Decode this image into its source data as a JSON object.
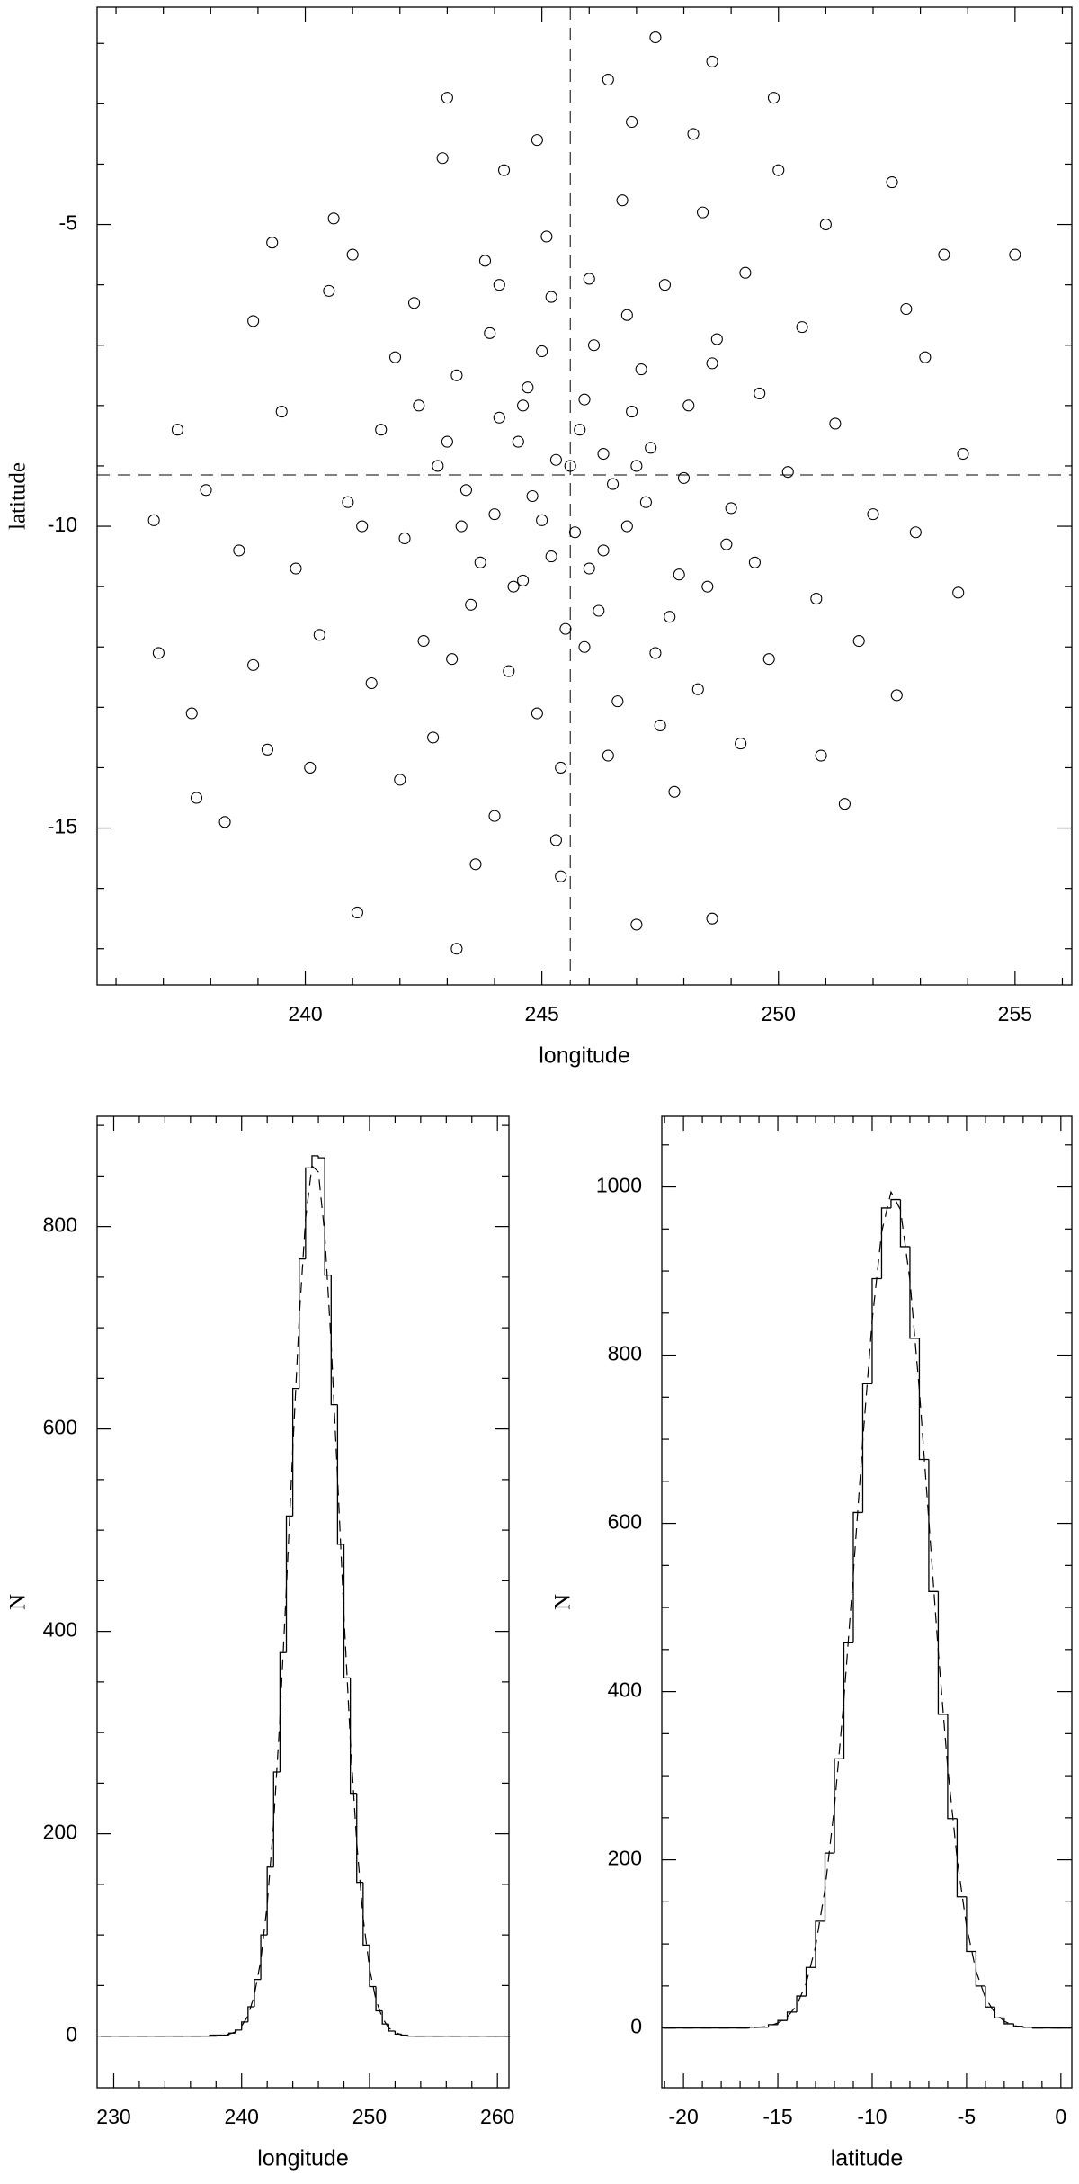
{
  "chart_data": [
    {
      "type": "scatter",
      "xlabel": "longitude",
      "ylabel": "latitude",
      "color": "#000000",
      "xlim": [
        235.6,
        256.2
      ],
      "ylim": [
        -17.6,
        -1.4
      ],
      "xticks": [
        240,
        245,
        250,
        255
      ],
      "yticks": [
        -15,
        -10,
        -5
      ],
      "xminorticks": [
        236,
        237,
        238,
        239,
        241,
        242,
        243,
        244,
        246,
        247,
        248,
        249,
        251,
        252,
        253,
        254,
        256
      ],
      "yminorticks": [
        -17,
        -16,
        -14,
        -13,
        -12,
        -11,
        -9,
        -8,
        -7,
        -6,
        -4,
        -3,
        -2
      ],
      "ref_x": 245.6,
      "ref_y": -9.15,
      "x": [
        236.8,
        236.9,
        237.3,
        237.6,
        237.7,
        238.3,
        241.1,
        243.2,
        247.4,
        248.6,
        249.9,
        255,
        253.9,
        253.8,
        253.5,
        251.4,
        250.9,
        247,
        248.6,
        245.4,
        239.3,
        238.6,
        243,
        246.4,
        252.4,
        252.7,
        238.9,
        240.6,
        244.1,
        246.3,
        245,
        247.2,
        243.5,
        248.1,
        245.9,
        242.8,
        246.8,
        244.6,
        249,
        243.9,
        245.3,
        247.7,
        242.1,
        246,
        244.9,
        248.7,
        241.6,
        246.5,
        245.7,
        243.2,
        247.9,
        244.3,
        249.6,
        242.5,
        246.9,
        245.1,
        248.3,
        240.9,
        245.6,
        244,
        247.1,
        243.7,
        246.2,
        250.2,
        242.3,
        245.4,
        248.9,
        241.4,
        246.7,
        244.7,
        247.5,
        243,
        249.3,
        245.8,
        244.4,
        246.1,
        242.7,
        248,
        250.8,
        239.8,
        245.2,
        247.3,
        243.4,
        246.6,
        244.2,
        249.8,
        241.9,
        245.5,
        251.2,
        240.3,
        246.4,
        243.8,
        248.4,
        242,
        247.6,
        244.8,
        250.5,
        239.5,
        246,
        245,
        244.5,
        247,
        243.1,
        248.6,
        241.2,
        249.5,
        244.9,
        252,
        238.9,
        251.7,
        240.5,
        250,
        245.3,
        247.8,
        242.9,
        253.1,
        239.2,
        246.9,
        244,
        249.2,
        241,
        252.5,
        237.9,
        251,
        243.6,
        248.2,
        240.1,
        252.9,
        245.9,
        246.3,
        244.6,
        245.2,
        246.8,
        243.3,
        247.4,
        244.1,
        248.5,
        242.4
      ],
      "y": [
        -9.9,
        -12.1,
        -8.4,
        -13.1,
        -14.5,
        -14.9,
        -16.4,
        -17,
        -1.9,
        -2.3,
        -2.9,
        -5.5,
        -8.8,
        -11.1,
        -5.5,
        -14.6,
        -13.8,
        -16.6,
        -16.5,
        -15.8,
        -5.3,
        -10.4,
        -2.9,
        -2.6,
        -4.3,
        -6.4,
        -6.6,
        -4.9,
        -8.2,
        -10.4,
        -7.1,
        -9.6,
        -11.3,
        -8,
        -12,
        -9,
        -6.5,
        -10.9,
        -9.7,
        -6.8,
        -8.9,
        -11.5,
        -10.2,
        -5.9,
        -13.1,
        -6.9,
        -8.4,
        -9.3,
        -10.1,
        -7.5,
        -10.8,
        -12.4,
        -7.8,
        -11.9,
        -8.1,
        -5.2,
        -12.7,
        -9.6,
        -9,
        -9.8,
        -7.4,
        -10.6,
        -11.4,
        -9.1,
        -6.3,
        -14,
        -10.3,
        -12.6,
        -4.6,
        -7.7,
        -13.3,
        -8.6,
        -5.8,
        -8.4,
        -11,
        -7,
        -13.5,
        -9.2,
        -11.2,
        -10.7,
        -6.2,
        -8.7,
        -9.4,
        -12.9,
        -4.1,
        -12.2,
        -7.2,
        -11.7,
        -8.3,
        -11.8,
        -13.8,
        -5.6,
        -4.8,
        -14.2,
        -6,
        -9.5,
        -6.7,
        -8.1,
        -10.7,
        -9.9,
        -8.6,
        -9,
        -12.2,
        -7.3,
        -10,
        -10.6,
        -3.6,
        -9.8,
        -12.3,
        -11.9,
        -6.1,
        -4.1,
        -15.2,
        -14.4,
        -3.9,
        -7.2,
        -13.7,
        -3.3,
        -14.8,
        -13.6,
        -5.5,
        -12.8,
        -9.4,
        -5,
        -15.6,
        -3.5,
        -14,
        -10.1,
        -7.9,
        -8.8,
        -8,
        -10.5,
        -10,
        -10,
        -12.1,
        -6,
        -11,
        -8
      ]
    },
    {
      "type": "histogram",
      "xlabel": "longitude",
      "ylabel": "N",
      "color": "#000000",
      "xlim": [
        228.7,
        260.9
      ],
      "ylim": [
        -51,
        909
      ],
      "xticks": [
        230,
        240,
        250,
        260
      ],
      "yticks": [
        0,
        200,
        400,
        600,
        800
      ],
      "xminorticks": [
        232,
        234,
        236,
        238,
        242,
        244,
        246,
        248,
        252,
        254,
        256,
        258
      ],
      "yminorticks": [
        50,
        100,
        150,
        250,
        300,
        350,
        450,
        500,
        550,
        650,
        700,
        750,
        850,
        900
      ],
      "bins": [
        229,
        234,
        234.5,
        235,
        235.5,
        236,
        236.5,
        237,
        237.5,
        238,
        238.5,
        239,
        239.5,
        240,
        240.5,
        241,
        241.5,
        242,
        242.5,
        243,
        243.5,
        244,
        244.5,
        245,
        245.5,
        246,
        246.5,
        247,
        247.5,
        248,
        248.5,
        249,
        249.5,
        250,
        250.5,
        251,
        251.5,
        252,
        252.5,
        253,
        253.5,
        254,
        254.5,
        255,
        255.5,
        256,
        256.5,
        257,
        261
      ],
      "counts": [
        0,
        0,
        0,
        0,
        0,
        0,
        0,
        0,
        1,
        1,
        1,
        3,
        6,
        14,
        29,
        56,
        100,
        167,
        261,
        379,
        514,
        640,
        768,
        858,
        870,
        868,
        752,
        624,
        486,
        354,
        240,
        152,
        90,
        49,
        25,
        12,
        5,
        2,
        1,
        0,
        0,
        0,
        0,
        0,
        0,
        0,
        0,
        0
      ],
      "fit": {
        "x": [
          229,
          238,
          238.5,
          239,
          239.5,
          240,
          240.5,
          241,
          241.5,
          242,
          242.5,
          243,
          243.5,
          244,
          244.5,
          245,
          245.5,
          246,
          246.5,
          247,
          247.5,
          248,
          248.5,
          249,
          249.5,
          250,
          250.5,
          251,
          251.5,
          252,
          252.5,
          253,
          261
        ],
        "values": [
          0,
          0,
          1,
          2,
          4,
          10,
          20,
          41,
          75,
          130,
          210,
          315,
          443,
          580,
          709,
          808,
          860,
          854,
          792,
          684,
          552,
          416,
          292,
          191,
          117,
          67,
          36,
          18,
          8,
          4,
          1,
          0,
          0
        ]
      }
    },
    {
      "type": "histogram",
      "xlabel": "latitude",
      "ylabel": "N",
      "color": "#000000",
      "xlim": [
        -21.15,
        0.58
      ],
      "ylim": [
        -71,
        1084
      ],
      "xticks": [
        -20,
        -15,
        -10,
        -5,
        0
      ],
      "yticks": [
        0,
        200,
        400,
        600,
        800,
        1000
      ],
      "xminorticks": [
        -21,
        -19,
        -18,
        -17,
        -16,
        -14,
        -13,
        -12,
        -11,
        -9,
        -8,
        -7,
        -6,
        -4,
        -3,
        -2,
        -1
      ],
      "yminorticks": [
        50,
        100,
        150,
        250,
        300,
        350,
        450,
        500,
        550,
        650,
        700,
        750,
        850,
        900,
        950,
        1050
      ],
      "bins": [
        -21,
        -17,
        -16.5,
        -16,
        -15.5,
        -15,
        -14.5,
        -14,
        -13.5,
        -13,
        -12.5,
        -12,
        -11.5,
        -11,
        -10.5,
        -10,
        -9.5,
        -9,
        -8.5,
        -8,
        -7.5,
        -7,
        -6.5,
        -6,
        -5.5,
        -5,
        -4.5,
        -4,
        -3.5,
        -3,
        -2.5,
        -2,
        -1.5,
        -1,
        0.5
      ],
      "counts": [
        0,
        0,
        1,
        1,
        4,
        9,
        19,
        38,
        72,
        127,
        208,
        320,
        458,
        613,
        766,
        891,
        975,
        985,
        929,
        820,
        676,
        519,
        373,
        249,
        156,
        91,
        50,
        25,
        12,
        5,
        2,
        1,
        0,
        0
      ],
      "fit": {
        "x": [
          -21,
          -16.5,
          -16,
          -15.5,
          -15,
          -14.5,
          -14,
          -13.5,
          -13,
          -12.5,
          -12,
          -11.5,
          -11,
          -10.5,
          -10,
          -9.5,
          -9,
          -8.5,
          -8,
          -7.5,
          -7,
          -6.5,
          -6,
          -5.5,
          -5,
          -4.5,
          -4,
          -3.5,
          -3,
          -2.5,
          -2,
          -1.5,
          0.5
        ],
        "values": [
          0,
          0,
          1,
          2,
          6,
          13,
          27,
          53,
          97,
          165,
          263,
          390,
          540,
          698,
          841,
          946,
          994,
          973,
          889,
          758,
          604,
          448,
          310,
          201,
          121,
          68,
          36,
          18,
          8,
          3,
          1,
          0,
          0
        ]
      }
    }
  ]
}
